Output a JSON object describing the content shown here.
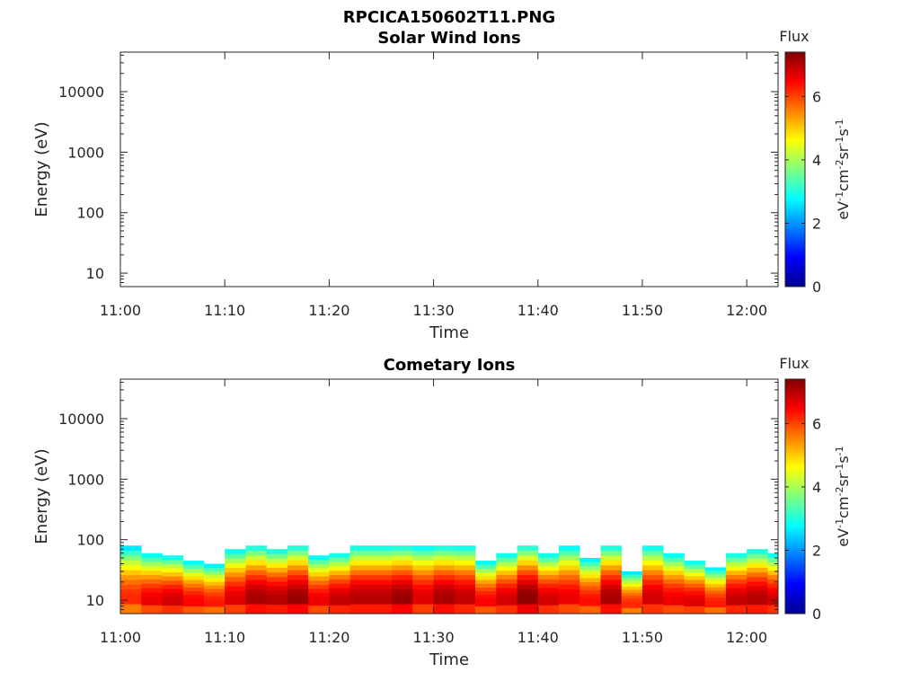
{
  "figure_title": "RPCICA150602T11.PNG",
  "colormap": [
    "#00008f",
    "#0000ff",
    "#0080ff",
    "#00ffff",
    "#80ff80",
    "#ffff00",
    "#ff8000",
    "#ff0000",
    "#800000"
  ],
  "chart_data": [
    {
      "type": "heatmap",
      "title": "Solar Wind Ions",
      "xlabel": "Time",
      "ylabel": "Energy (eV)",
      "x_ticks": [
        "11:00",
        "11:10",
        "11:20",
        "11:30",
        "11:40",
        "11:50",
        "12:00"
      ],
      "x_range": [
        "11:00",
        "12:03"
      ],
      "y_scale": "log",
      "y_range": [
        6,
        45000
      ],
      "y_ticks": [
        10,
        100,
        1000,
        10000
      ],
      "y_tick_labels": [
        "10",
        "100",
        "1000",
        "10000"
      ],
      "colorbar": {
        "title": "Flux",
        "label": "eV-1cm-2sr-1s-1",
        "range": [
          0,
          7.4
        ],
        "ticks": [
          0,
          2,
          4,
          6
        ],
        "tick_labels": [
          "0",
          "2",
          "4",
          "6"
        ]
      },
      "data_present": false,
      "flux_profile": []
    },
    {
      "type": "heatmap",
      "title": "Cometary Ions",
      "xlabel": "Time",
      "ylabel": "Energy (eV)",
      "x_ticks": [
        "11:00",
        "11:10",
        "11:20",
        "11:30",
        "11:40",
        "11:50",
        "12:00"
      ],
      "x_range": [
        "11:00",
        "12:03"
      ],
      "y_scale": "log",
      "y_range": [
        6,
        45000
      ],
      "y_ticks": [
        10,
        100,
        1000,
        10000
      ],
      "y_tick_labels": [
        "10",
        "100",
        "1000",
        "10000"
      ],
      "colorbar": {
        "title": "Flux",
        "label": "eV-1cm-2sr-1s-1",
        "range": [
          0,
          7.4
        ],
        "ticks": [
          0,
          2,
          4,
          6
        ],
        "tick_labels": [
          "0",
          "2",
          "4",
          "6"
        ]
      },
      "data_present": true,
      "flux_profile": [
        {
          "time_min": 0,
          "peak_flux": 6.2,
          "top_energy_eV": 80
        },
        {
          "time_min": 2,
          "peak_flux": 6.6,
          "top_energy_eV": 60
        },
        {
          "time_min": 4,
          "peak_flux": 6.8,
          "top_energy_eV": 55
        },
        {
          "time_min": 6,
          "peak_flux": 6.5,
          "top_energy_eV": 45
        },
        {
          "time_min": 8,
          "peak_flux": 6.3,
          "top_energy_eV": 40
        },
        {
          "time_min": 10,
          "peak_flux": 6.7,
          "top_energy_eV": 70
        },
        {
          "time_min": 12,
          "peak_flux": 7.1,
          "top_energy_eV": 80
        },
        {
          "time_min": 14,
          "peak_flux": 7.0,
          "top_energy_eV": 70
        },
        {
          "time_min": 16,
          "peak_flux": 7.2,
          "top_energy_eV": 80
        },
        {
          "time_min": 18,
          "peak_flux": 6.6,
          "top_energy_eV": 55
        },
        {
          "time_min": 20,
          "peak_flux": 6.9,
          "top_energy_eV": 60
        },
        {
          "time_min": 22,
          "peak_flux": 7.0,
          "top_energy_eV": 80
        },
        {
          "time_min": 24,
          "peak_flux": 7.0,
          "top_energy_eV": 80
        },
        {
          "time_min": 26,
          "peak_flux": 7.2,
          "top_energy_eV": 80
        },
        {
          "time_min": 28,
          "peak_flux": 6.7,
          "top_energy_eV": 80
        },
        {
          "time_min": 30,
          "peak_flux": 7.1,
          "top_energy_eV": 80
        },
        {
          "time_min": 32,
          "peak_flux": 6.9,
          "top_energy_eV": 80
        },
        {
          "time_min": 34,
          "peak_flux": 6.5,
          "top_energy_eV": 45
        },
        {
          "time_min": 36,
          "peak_flux": 6.8,
          "top_energy_eV": 60
        },
        {
          "time_min": 38,
          "peak_flux": 7.3,
          "top_energy_eV": 80
        },
        {
          "time_min": 40,
          "peak_flux": 6.8,
          "top_energy_eV": 60
        },
        {
          "time_min": 42,
          "peak_flux": 6.6,
          "top_energy_eV": 80
        },
        {
          "time_min": 44,
          "peak_flux": 6.4,
          "top_energy_eV": 50
        },
        {
          "time_min": 46,
          "peak_flux": 7.1,
          "top_energy_eV": 80
        },
        {
          "time_min": 48,
          "peak_flux": 6.2,
          "top_energy_eV": 30
        },
        {
          "time_min": 50,
          "peak_flux": 6.8,
          "top_energy_eV": 80
        },
        {
          "time_min": 52,
          "peak_flux": 6.6,
          "top_energy_eV": 60
        },
        {
          "time_min": 54,
          "peak_flux": 6.7,
          "top_energy_eV": 45
        },
        {
          "time_min": 56,
          "peak_flux": 6.3,
          "top_energy_eV": 35
        },
        {
          "time_min": 58,
          "peak_flux": 6.9,
          "top_energy_eV": 60
        },
        {
          "time_min": 60,
          "peak_flux": 7.0,
          "top_energy_eV": 70
        },
        {
          "time_min": 62,
          "peak_flux": 6.8,
          "top_energy_eV": 60
        }
      ]
    }
  ]
}
